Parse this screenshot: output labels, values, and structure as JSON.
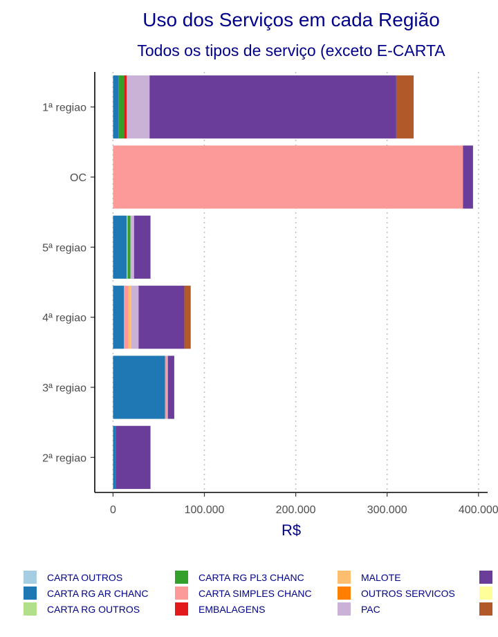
{
  "chart_data": {
    "type": "bar",
    "orientation": "horizontal",
    "stacked": true,
    "title": "Uso dos Serviços em cada Região",
    "subtitle": "Todos os tipos de serviço (exceto E-CARTA",
    "xlabel": "R$",
    "ylabel": "",
    "xlim": [
      -20000,
      410000
    ],
    "x_ticks": [
      0,
      100000,
      200000,
      300000,
      400000
    ],
    "x_tick_labels": [
      "0",
      "100.000",
      "200.000",
      "300.000",
      "400.000"
    ],
    "grid": "vertical dotted",
    "legend_position": "bottom",
    "categories": [
      "1ª regiao",
      "OC",
      "5ª regiao",
      "4ª regiao",
      "3ª regiao",
      "2ª regiao"
    ],
    "series": [
      {
        "name": "CARTA OUTROS",
        "color": "#A6CEE3",
        "values": [
          0,
          0,
          0,
          0,
          0,
          0
        ]
      },
      {
        "name": "CARTA RG AR CHANC",
        "color": "#1F78B4",
        "values": [
          6000,
          0,
          15000,
          12000,
          57000,
          3000
        ]
      },
      {
        "name": "CARTA RG OUTROS",
        "color": "#B2DF8A",
        "values": [
          0,
          0,
          1000,
          0,
          0,
          0
        ]
      },
      {
        "name": "CARTA RG PL3 CHANC",
        "color": "#33A02C",
        "values": [
          6000,
          0,
          3000,
          0,
          0,
          0
        ]
      },
      {
        "name": "CARTA SIMPLES CHANC",
        "color": "#FB9A99",
        "values": [
          0,
          383000,
          0,
          5000,
          2000,
          0
        ]
      },
      {
        "name": "EMBALAGENS",
        "color": "#E31A1C",
        "values": [
          3000,
          0,
          0,
          0,
          0,
          0
        ]
      },
      {
        "name": "MALOTE",
        "color": "#FDBF6F",
        "values": [
          0,
          0,
          0,
          3000,
          0,
          0
        ]
      },
      {
        "name": "OUTROS SERVICOS",
        "color": "#FF7F00",
        "values": [
          0,
          0,
          0,
          0,
          0,
          0
        ]
      },
      {
        "name": "PAC",
        "color": "#CAB2D6",
        "values": [
          25000,
          0,
          4000,
          8000,
          1000,
          0
        ]
      },
      {
        "name": "",
        "color": "#6A3D9A",
        "values": [
          270000,
          11000,
          18000,
          50000,
          7000,
          38000
        ]
      },
      {
        "name": "",
        "color": "#FFFF99",
        "values": [
          0,
          0,
          0,
          0,
          0,
          0
        ]
      },
      {
        "name": "",
        "color": "#B15928",
        "values": [
          19000,
          0,
          0,
          7000,
          0,
          0
        ]
      }
    ]
  }
}
